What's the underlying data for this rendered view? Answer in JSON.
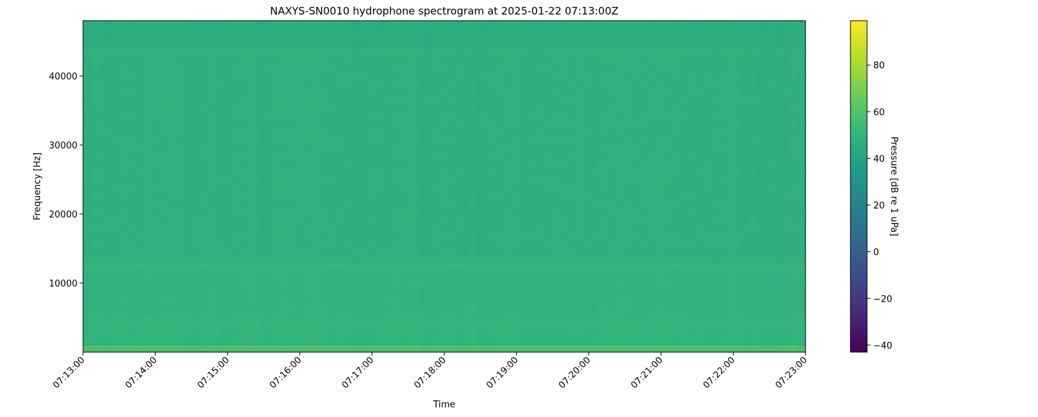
{
  "chart_data": {
    "type": "heatmap",
    "title": "NAXYS-SN0010 hydrophone spectrogram at 2025-01-22 07:13:00Z",
    "xlabel": "Time",
    "ylabel": "Frequency [Hz]",
    "colorbar_label": "Pressure [dB re 1 uPa]",
    "colormap": "viridis",
    "x_range": [
      "07:13:00",
      "07:23:00"
    ],
    "x_ticks": [
      "07:13:00",
      "07:14:00",
      "07:15:00",
      "07:16:00",
      "07:17:00",
      "07:18:00",
      "07:19:00",
      "07:20:00",
      "07:21:00",
      "07:22:00",
      "07:23:00"
    ],
    "y_range": [
      0,
      48000
    ],
    "y_ticks": [
      10000,
      20000,
      30000,
      40000
    ],
    "y_tick_labels": [
      "10000",
      "20000",
      "30000",
      "40000"
    ],
    "color_range": [
      -43,
      99
    ],
    "colorbar_ticks": [
      -40,
      -20,
      0,
      20,
      40,
      60,
      80
    ],
    "colorbar_tick_labels": [
      "−40",
      "−20",
      "0",
      "20",
      "40",
      "60",
      "80"
    ],
    "frequency_band_hz": 1000,
    "mean_level_db_by_band": [
      58,
      49,
      49,
      49,
      50,
      48.5,
      48.5,
      48.5,
      48.5,
      48.5,
      48.5,
      48.5,
      50,
      47.5,
      47,
      47,
      47,
      47,
      47,
      47,
      47,
      47,
      47,
      47,
      47,
      47,
      47,
      47,
      47,
      47,
      47,
      47,
      47,
      47,
      47,
      47,
      47,
      47,
      47,
      47,
      47,
      47,
      47,
      48,
      46,
      46,
      46,
      46
    ]
  }
}
